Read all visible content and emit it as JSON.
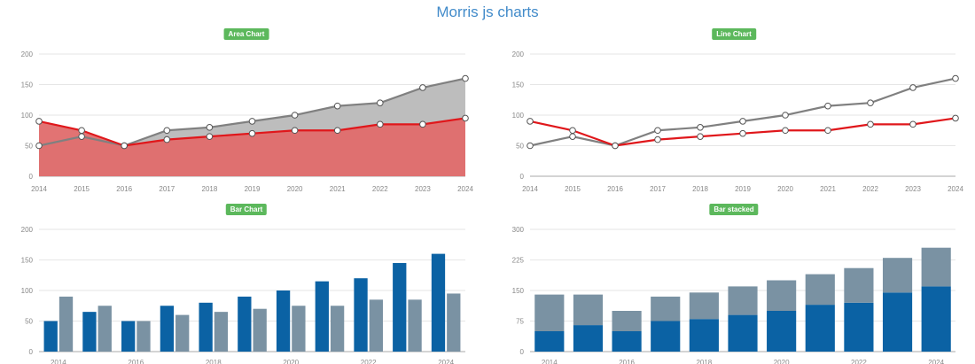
{
  "page": {
    "title": "Morris js charts"
  },
  "chart_data": [
    {
      "type": "area",
      "title": "Area Chart",
      "categories": [
        "2014",
        "2015",
        "2016",
        "2017",
        "2018",
        "2019",
        "2020",
        "2021",
        "2022",
        "2023",
        "2024"
      ],
      "series": [
        {
          "values": [
            50,
            65,
            50,
            75,
            80,
            90,
            100,
            115,
            120,
            145,
            160
          ],
          "color": "#808080",
          "fill": "#bdbdbd"
        },
        {
          "values": [
            90,
            75,
            50,
            60,
            65,
            70,
            75,
            75,
            85,
            85,
            95
          ],
          "color": "#e0171b",
          "fill": "#e06c6c"
        }
      ],
      "ylim": [
        0,
        200
      ],
      "yticks": [
        0,
        50,
        100,
        150,
        200
      ],
      "grid": true
    },
    {
      "type": "line",
      "title": "Line Chart",
      "categories": [
        "2014",
        "2015",
        "2016",
        "2017",
        "2018",
        "2019",
        "2020",
        "2021",
        "2022",
        "2023",
        "2024"
      ],
      "series": [
        {
          "values": [
            50,
            65,
            50,
            75,
            80,
            90,
            100,
            115,
            120,
            145,
            160
          ],
          "color": "#808080"
        },
        {
          "values": [
            90,
            75,
            50,
            60,
            65,
            70,
            75,
            75,
            85,
            85,
            95
          ],
          "color": "#e0171b"
        }
      ],
      "ylim": [
        0,
        200
      ],
      "yticks": [
        0,
        50,
        100,
        150,
        200
      ],
      "grid": true
    },
    {
      "type": "bar",
      "title": "Bar Chart",
      "categories": [
        "2014",
        "2015",
        "2016",
        "2017",
        "2018",
        "2019",
        "2020",
        "2021",
        "2022",
        "2023",
        "2024"
      ],
      "series": [
        {
          "values": [
            50,
            65,
            50,
            75,
            80,
            90,
            100,
            115,
            120,
            145,
            160
          ],
          "color": "#0b62a4"
        },
        {
          "values": [
            90,
            75,
            50,
            60,
            65,
            70,
            75,
            75,
            85,
            85,
            95
          ],
          "color": "#7a92a3"
        }
      ],
      "ylim": [
        0,
        200
      ],
      "yticks": [
        0,
        50,
        100,
        150,
        200
      ],
      "xtick_labels_shown": [
        "2014",
        "2016",
        "2018",
        "2020",
        "2022",
        "2024"
      ],
      "grid": true
    },
    {
      "type": "bar",
      "stacked": true,
      "title": "Bar stacked",
      "categories": [
        "2014",
        "2015",
        "2016",
        "2017",
        "2018",
        "2019",
        "2020",
        "2021",
        "2022",
        "2023",
        "2024"
      ],
      "series": [
        {
          "values": [
            50,
            65,
            50,
            75,
            80,
            90,
            100,
            115,
            120,
            145,
            160
          ],
          "color": "#0b62a4"
        },
        {
          "values": [
            90,
            75,
            50,
            60,
            65,
            70,
            75,
            75,
            85,
            85,
            95
          ],
          "color": "#7a92a3"
        }
      ],
      "ylim": [
        0,
        300
      ],
      "yticks": [
        0,
        75,
        150,
        225,
        300
      ],
      "xtick_labels_shown": [
        "2014",
        "2016",
        "2018",
        "2020",
        "2022",
        "2024"
      ],
      "grid": true
    }
  ]
}
